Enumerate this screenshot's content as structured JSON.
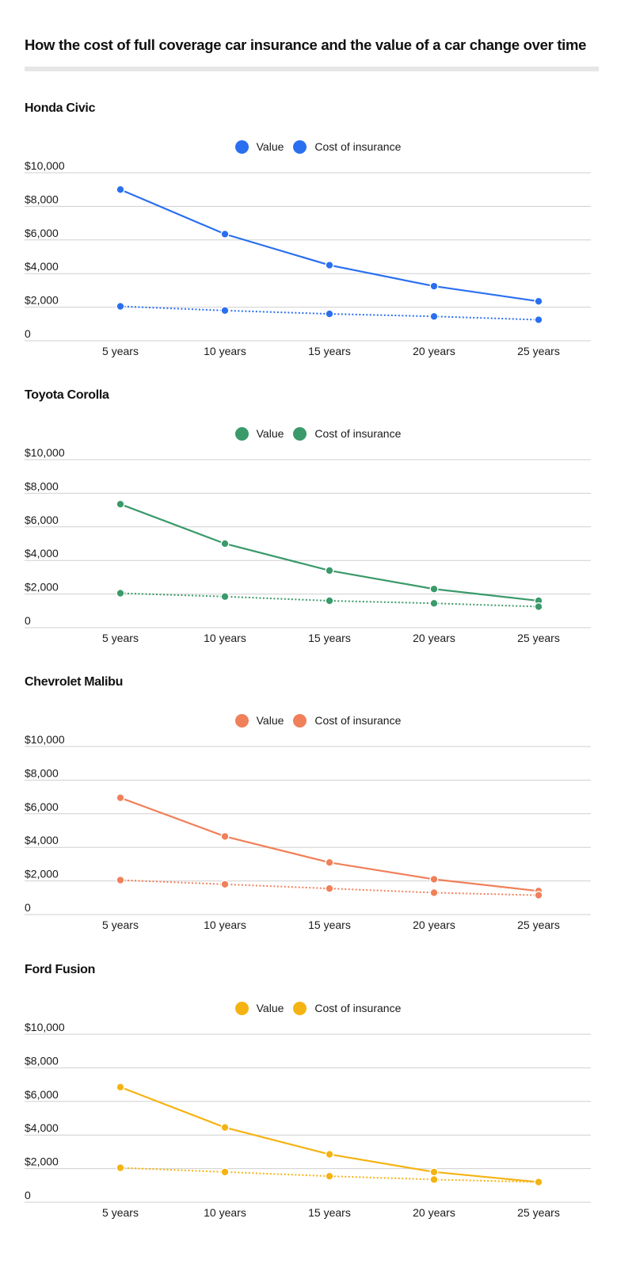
{
  "title": "How the cost of full coverage car insurance and the value of a car change over time",
  "chart_data": [
    {
      "type": "line",
      "title": "Honda Civic",
      "color": "#2a6ff0",
      "categories": [
        "5 years",
        "10 years",
        "15 years",
        "20 years",
        "25 years"
      ],
      "yticks": [
        "$10,000",
        "$8,000",
        "$6,000",
        "$4,000",
        "$2,000",
        "0"
      ],
      "ylim": [
        0,
        10000
      ],
      "series": [
        {
          "name": "Value",
          "style": "solid",
          "values": [
            9000,
            6350,
            4500,
            3250,
            2350
          ]
        },
        {
          "name": "Cost of insurance",
          "style": "dotted",
          "values": [
            2050,
            1800,
            1600,
            1450,
            1250
          ]
        }
      ]
    },
    {
      "type": "line",
      "title": "Toyota Corolla",
      "color": "#3a9a6a",
      "categories": [
        "5 years",
        "10 years",
        "15 years",
        "20 years",
        "25 years"
      ],
      "yticks": [
        "$10,000",
        "$8,000",
        "$6,000",
        "$4,000",
        "$2,000",
        "0"
      ],
      "ylim": [
        0,
        10000
      ],
      "series": [
        {
          "name": "Value",
          "style": "solid",
          "values": [
            7350,
            5000,
            3400,
            2300,
            1600
          ]
        },
        {
          "name": "Cost of insurance",
          "style": "dotted",
          "values": [
            2050,
            1850,
            1600,
            1450,
            1250
          ]
        }
      ]
    },
    {
      "type": "line",
      "title": "Chevrolet Malibu",
      "color": "#f0805a",
      "categories": [
        "5 years",
        "10 years",
        "15 years",
        "20 years",
        "25 years"
      ],
      "yticks": [
        "$10,000",
        "$8,000",
        "$6,000",
        "$4,000",
        "$2,000",
        "0"
      ],
      "ylim": [
        0,
        10000
      ],
      "series": [
        {
          "name": "Value",
          "style": "solid",
          "values": [
            6950,
            4650,
            3100,
            2100,
            1400
          ]
        },
        {
          "name": "Cost of insurance",
          "style": "dotted",
          "values": [
            2050,
            1800,
            1550,
            1300,
            1150
          ]
        }
      ]
    },
    {
      "type": "line",
      "title": "Ford Fusion",
      "color": "#f4b312",
      "categories": [
        "5 years",
        "10 years",
        "15 years",
        "20 years",
        "25 years"
      ],
      "yticks": [
        "$10,000",
        "$8,000",
        "$6,000",
        "$4,000",
        "$2,000",
        "0"
      ],
      "ylim": [
        0,
        10000
      ],
      "series": [
        {
          "name": "Value",
          "style": "solid",
          "values": [
            6850,
            4450,
            2850,
            1800,
            1200
          ]
        },
        {
          "name": "Cost of insurance",
          "style": "dotted",
          "values": [
            2050,
            1800,
            1550,
            1350,
            1200
          ]
        }
      ]
    }
  ]
}
